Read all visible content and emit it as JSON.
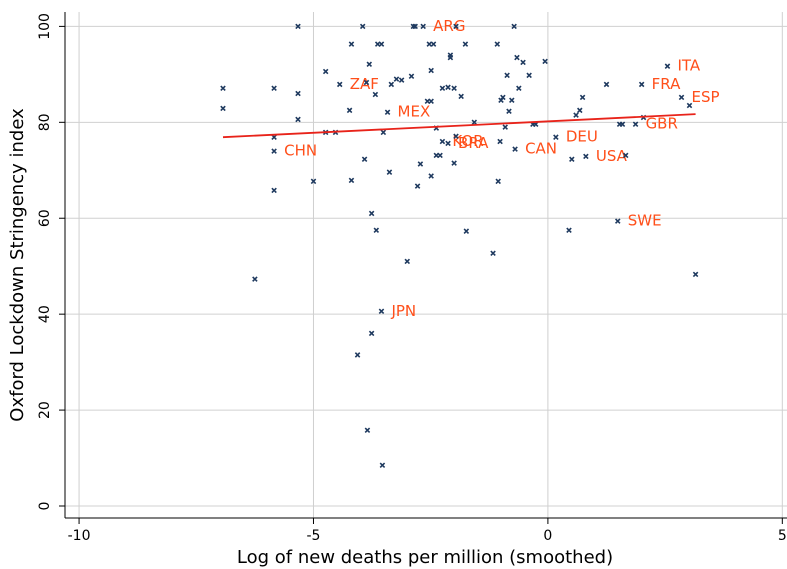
{
  "chart_data": {
    "type": "scatter",
    "x_label": "Log of new deaths per million (smoothed)",
    "y_label": "Oxford Lockdown Stringency index",
    "xlim": [
      -10.3,
      5.1
    ],
    "ylim": [
      -2.5,
      103
    ],
    "xticks": [
      -10,
      -5,
      0,
      5
    ],
    "yticks": [
      0,
      20,
      40,
      60,
      80,
      100
    ],
    "grid": true,
    "series": [
      {
        "color": "#1f3a5f",
        "label_color": "#ff4f1a",
        "x": [
          -6.93,
          -6.93,
          -6.25,
          -5.84,
          -5.84,
          -5.84,
          -5.84,
          -5.33,
          -5.33,
          -5.33,
          -5,
          -4.74,
          -4.74,
          -4.53,
          -4.44,
          -4.23,
          -4.19,
          -4.19,
          -4.06,
          -3.95,
          -3.91,
          -3.87,
          -3.81,
          -3.85,
          -3.76,
          -3.76,
          -3.68,
          -3.66,
          -3.63,
          -3.55,
          -3.55,
          -3.53,
          -3.51,
          -3.42,
          -3.38,
          -3.34,
          -3.23,
          -3.12,
          -3,
          -2.91,
          -2.87,
          -2.83,
          -2.78,
          -2.72,
          -2.66,
          -2.57,
          -2.53,
          -2.49,
          -2.49,
          -2.49,
          -2.44,
          -2.38,
          -2.38,
          -2.3,
          -2.25,
          -2.25,
          -2.13,
          -2.13,
          -2.08,
          -2.08,
          -2,
          -2,
          -1.96,
          -1.96,
          -1.85,
          -1.76,
          -1.74,
          -1.57,
          -1.17,
          -1.08,
          -1.06,
          -1.02,
          -1,
          -0.96,
          -0.91,
          -0.87,
          -0.83,
          -0.77,
          -0.72,
          -0.7,
          -0.66,
          -0.62,
          -0.53,
          -0.4,
          -0.32,
          -0.26,
          -0.06,
          0.17,
          0.45,
          0.51,
          0.6,
          0.68,
          0.74,
          0.81,
          1.25,
          1.49,
          1.53,
          1.59,
          1.66,
          1.87,
          2,
          2.04,
          2.55,
          2.85,
          3.02,
          3.15
        ],
        "values": [
          87.1,
          82.9,
          47.3,
          74,
          65.8,
          87.1,
          76.9,
          100,
          86,
          80.6,
          67.7,
          90.6,
          77.9,
          77.9,
          87.9,
          82.5,
          96.3,
          67.9,
          31.5,
          100,
          72.3,
          88.3,
          92.1,
          15.8,
          61,
          36,
          85.8,
          57.5,
          96.3,
          96.3,
          40.6,
          8.5,
          77.9,
          82.1,
          69.6,
          87.9,
          89,
          88.8,
          51,
          89.6,
          100,
          100,
          66.7,
          71.3,
          100,
          84.4,
          96.3,
          90.8,
          68.8,
          84.4,
          96.3,
          78.8,
          73.1,
          73.1,
          76,
          87.1,
          75.6,
          87.3,
          94,
          93.5,
          87.1,
          71.5,
          77.1,
          100,
          85.4,
          96.3,
          57.3,
          80,
          52.7,
          96.3,
          67.7,
          76,
          84.6,
          85.2,
          79,
          89.8,
          82.3,
          84.6,
          100,
          74.4,
          93.5,
          87.1,
          92.5,
          89.8,
          79.6,
          79.6,
          92.7,
          76.9,
          57.5,
          72.3,
          81.5,
          82.5,
          85.2,
          72.9,
          87.9,
          59.4,
          79.6,
          79.6,
          73.1,
          79.6,
          87.9,
          81,
          91.7,
          85.2,
          83.5,
          48.3
        ],
        "labels": [
          null,
          null,
          null,
          "CHN",
          null,
          null,
          null,
          null,
          null,
          null,
          null,
          null,
          null,
          null,
          "ZAF",
          null,
          null,
          null,
          null,
          null,
          null,
          null,
          null,
          null,
          null,
          null,
          null,
          null,
          null,
          null,
          "JPN",
          null,
          null,
          "MEX",
          null,
          null,
          null,
          null,
          null,
          null,
          null,
          null,
          null,
          null,
          "ARG",
          null,
          null,
          null,
          null,
          null,
          null,
          null,
          null,
          null,
          "KOR",
          null,
          "BRA",
          null,
          null,
          null,
          null,
          null,
          null,
          null,
          null,
          null,
          null,
          null,
          null,
          null,
          null,
          null,
          null,
          null,
          null,
          null,
          null,
          null,
          null,
          "CAN",
          null,
          null,
          null,
          null,
          null,
          null,
          null,
          "DEU",
          null,
          null,
          null,
          null,
          null,
          "USA",
          null,
          "SWE",
          null,
          null,
          null,
          "GBR",
          "FRA",
          null,
          "ITA",
          "ESP",
          null,
          null
        ]
      }
    ],
    "fit": {
      "color": "#e8231a",
      "x": [
        -6.93,
        3.15
      ],
      "values": [
        76.9,
        81.7
      ]
    }
  }
}
